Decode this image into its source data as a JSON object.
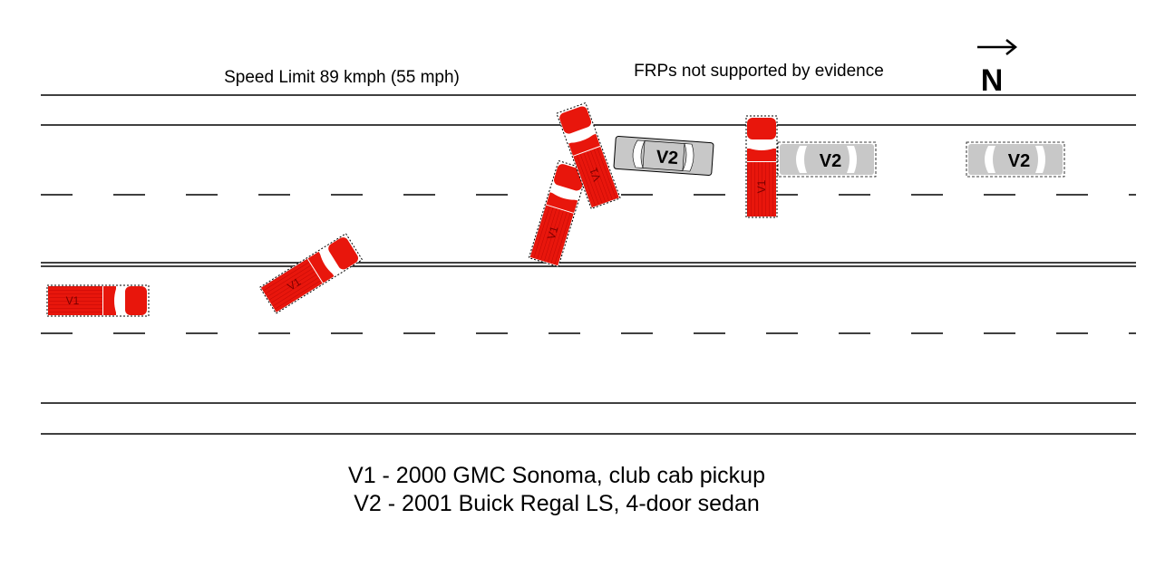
{
  "labels": {
    "speed_limit": "Speed Limit 89 kmph (55 mph)",
    "frps_note": "FRPs not supported by evidence",
    "north": "N"
  },
  "legend": {
    "v1": "V1 - 2000 GMC Sonoma, club cab pickup",
    "v2": "V2 - 2001 Buick Regal LS, 4-door sedan"
  },
  "vehicles": {
    "v1_label": "V1",
    "v2_label": "V2",
    "colors": {
      "v1_body": "#e8160c",
      "v1_dark": "#b00000",
      "v2_body": "#c8c8c8",
      "v2_light": "#dcdcdc"
    }
  }
}
